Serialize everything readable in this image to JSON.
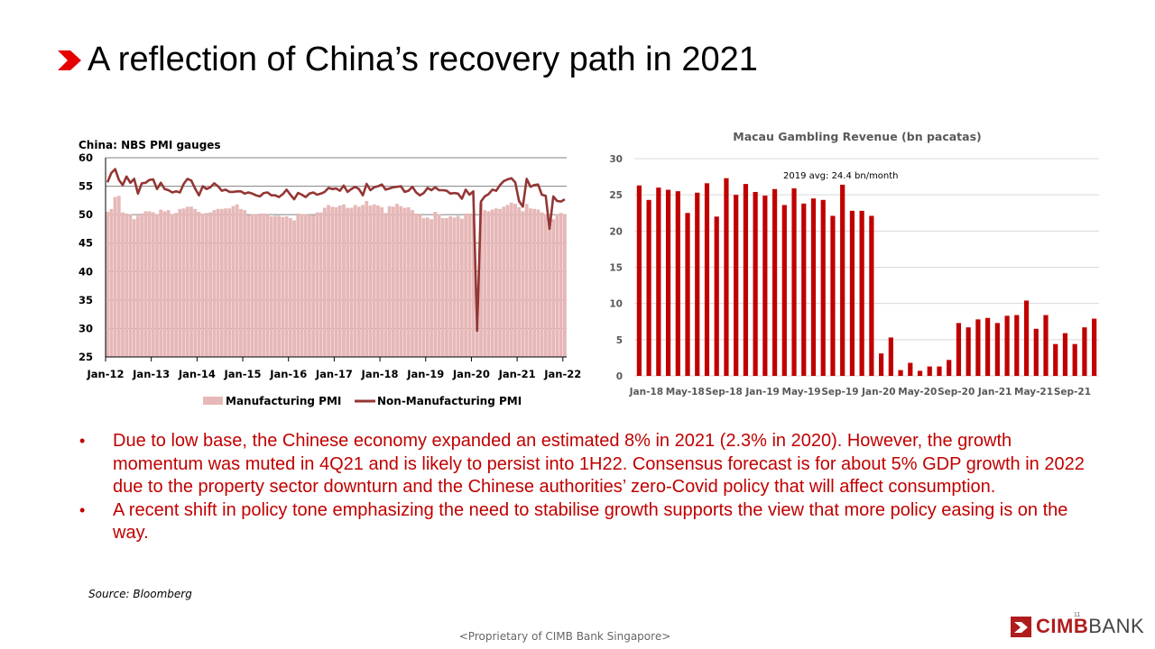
{
  "slide": {
    "title": "A reflection of China’s recovery path in 2021",
    "bullets": [
      "Due to low base, the Chinese economy expanded an estimated 8% in 2021 (2.3% in 2020). However, the growth momentum was muted in 4Q21 and is likely to persist into 1H22. Consensus forecast is for about 5% GDP growth in 2022 due to the property sector downturn and the Chinese authorities’ zero-Covid policy that will affect consumption.",
      "A recent shift in policy tone emphasizing the need to stabilise growth supports the view that more policy easing is on the way."
    ],
    "bullet_symbol": "•",
    "source": "Source: Bloomberg",
    "footer": "<Proprietary of CIMB Bank Singapore>",
    "page_number": "11",
    "logo": {
      "brand": "CIMB",
      "suffix": "BANK"
    }
  },
  "colors": {
    "accent": "#c00000",
    "pmi_bar": "#e6b8b7",
    "pmi_line": "#943634",
    "macau_bar": "#c00000",
    "grid": "#808080"
  },
  "chart_data": [
    {
      "type": "bar+line",
      "title": "China: NBS PMI gauges",
      "x_tick_labels": [
        "Jan-12",
        "Jan-13",
        "Jan-14",
        "Jan-15",
        "Jan-16",
        "Jan-17",
        "Jan-18",
        "Jan-19",
        "Jan-20",
        "Jan-21",
        "Jan-22"
      ],
      "x_start": "2012-01",
      "y_ticks": [
        60,
        55,
        50,
        45,
        40,
        35,
        30,
        25
      ],
      "ylim": [
        25,
        60
      ],
      "grid": true,
      "legend_position": "bottom",
      "series": [
        {
          "name": "Manufacturing PMI",
          "kind": "bar",
          "values": [
            50.5,
            51.0,
            53.1,
            53.3,
            50.4,
            50.2,
            50.1,
            49.2,
            49.8,
            50.2,
            50.6,
            50.6,
            50.4,
            50.1,
            50.9,
            50.6,
            50.8,
            50.1,
            50.3,
            51.0,
            51.1,
            51.4,
            51.4,
            51.0,
            50.5,
            50.2,
            50.3,
            50.4,
            50.8,
            51.0,
            51.0,
            51.1,
            51.1,
            51.5,
            51.8,
            51.0,
            50.8,
            49.9,
            50.1,
            50.1,
            50.2,
            50.2,
            50.0,
            49.7,
            49.8,
            49.8,
            49.6,
            49.7,
            49.4,
            49.0,
            50.2,
            50.1,
            50.1,
            50.0,
            49.9,
            50.4,
            50.4,
            51.2,
            51.7,
            51.4,
            51.3,
            51.6,
            51.8,
            51.2,
            51.2,
            51.7,
            51.4,
            51.7,
            52.4,
            51.6,
            51.8,
            51.6,
            51.3,
            50.3,
            51.5,
            51.4,
            51.9,
            51.5,
            51.2,
            51.3,
            50.8,
            50.2,
            50.0,
            49.4,
            49.5,
            49.2,
            50.5,
            50.1,
            49.4,
            49.4,
            49.7,
            49.5,
            49.8,
            49.3,
            50.2,
            50.2,
            50.0,
            35.7,
            52.0,
            50.8,
            50.6,
            50.9,
            51.1,
            51.0,
            51.4,
            51.7,
            52.1,
            51.9,
            51.3,
            50.6,
            51.9,
            51.1,
            51.0,
            50.9,
            50.4,
            50.1,
            49.6,
            49.2,
            50.1,
            50.3,
            50.1
          ],
          "note": "monthly values Jan-12 to Jan-22"
        },
        {
          "name": "Non-Manufacturing PMI",
          "kind": "line",
          "values": [
            55.7,
            57.3,
            58.0,
            56.1,
            55.2,
            56.7,
            55.6,
            56.3,
            53.7,
            55.5,
            55.6,
            56.1,
            56.2,
            54.5,
            55.6,
            54.5,
            54.3,
            53.9,
            54.1,
            53.9,
            55.4,
            56.3,
            56.0,
            54.6,
            53.4,
            55.0,
            54.5,
            54.8,
            55.5,
            55.0,
            54.2,
            54.4,
            54.0,
            54.0,
            54.1,
            54.1,
            53.7,
            53.9,
            53.7,
            53.4,
            53.2,
            53.8,
            53.9,
            53.4,
            53.4,
            53.1,
            53.6,
            54.4,
            53.5,
            52.7,
            53.8,
            53.5,
            53.1,
            53.7,
            53.9,
            53.5,
            53.7,
            54.0,
            54.7,
            54.5,
            54.6,
            54.2,
            55.1,
            54.0,
            54.5,
            54.9,
            54.5,
            53.4,
            55.4,
            54.3,
            54.8,
            55.0,
            55.3,
            54.4,
            54.6,
            54.8,
            54.9,
            55.0,
            54.0,
            54.2,
            54.9,
            53.9,
            53.4,
            53.8,
            54.7,
            54.3,
            54.8,
            54.3,
            54.3,
            54.2,
            53.7,
            53.8,
            53.7,
            52.8,
            54.4,
            53.5,
            54.1,
            29.6,
            52.3,
            53.2,
            53.6,
            54.4,
            54.2,
            55.2,
            55.9,
            56.2,
            56.4,
            55.7,
            52.4,
            51.4,
            56.3,
            54.9,
            55.2,
            55.3,
            53.5,
            53.3,
            47.5,
            53.2,
            52.4,
            52.3,
            52.7
          ]
        }
      ]
    },
    {
      "type": "bar",
      "title": "Macau Gambling Revenue (bn pacatas)",
      "x_tick_labels": [
        "Jan-18",
        "May-18",
        "Sep-18",
        "Jan-19",
        "May-19",
        "Sep-19",
        "Jan-20",
        "May-20",
        "Sep-20",
        "Jan-21",
        "May-21",
        "Sep-21"
      ],
      "x_start": "2018-01",
      "y_ticks": [
        30,
        25,
        20,
        15,
        10,
        5,
        0
      ],
      "ylim": [
        0,
        30
      ],
      "grid": true,
      "annotation": "2019 avg: 24.4 bn/month",
      "series": [
        {
          "name": "",
          "values": [
            26.3,
            24.3,
            26.0,
            25.7,
            25.5,
            22.5,
            25.3,
            26.6,
            22.0,
            27.3,
            25.0,
            26.5,
            25.4,
            24.9,
            25.8,
            23.6,
            25.9,
            23.8,
            24.5,
            24.3,
            22.1,
            26.4,
            22.8,
            22.8,
            22.1,
            3.1,
            5.3,
            0.8,
            1.8,
            0.7,
            1.3,
            1.3,
            2.2,
            7.3,
            6.7,
            7.8,
            8.0,
            7.3,
            8.3,
            8.4,
            10.4,
            6.5,
            8.4,
            4.4,
            5.9,
            4.4,
            6.7,
            7.9
          ]
        }
      ]
    }
  ]
}
